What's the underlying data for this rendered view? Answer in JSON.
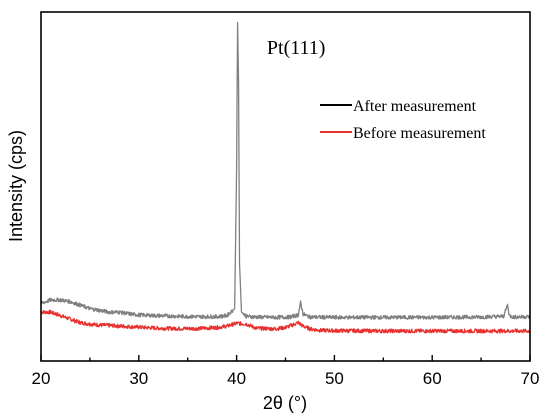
{
  "chart_data": {
    "type": "line",
    "xlabel": "2θ (°)",
    "ylabel": "Intensity (cps)",
    "xlim": [
      20,
      70
    ],
    "ylim": [
      0,
      100
    ],
    "x_ticks": [
      "20",
      "30",
      "40",
      "50",
      "60",
      "70"
    ],
    "y_ticks_labeled": false,
    "grid": false,
    "legend_position": "upper-right",
    "annotations": [
      {
        "text": "Pt(111)",
        "x": 43.1,
        "y": 90
      }
    ],
    "series": [
      {
        "name": "After measurement",
        "color": "#808080",
        "legend_color": "#000000",
        "x": [
          20,
          21,
          22,
          23,
          24,
          25,
          26,
          27,
          28,
          29,
          30,
          32,
          34,
          36,
          38,
          39,
          39.8,
          40.0,
          40.1,
          40.2,
          40.3,
          40.5,
          41,
          42,
          44,
          45.5,
          46.3,
          46.55,
          46.8,
          47.5,
          50,
          55,
          60,
          65,
          67.3,
          67.7,
          67.9,
          68.3,
          70
        ],
        "values": [
          16.5,
          17.5,
          17.5,
          17.0,
          16.0,
          15.0,
          14.5,
          14.0,
          14.0,
          13.5,
          13.2,
          13.0,
          12.8,
          12.7,
          12.7,
          13.0,
          15.0,
          55.0,
          97.0,
          80.0,
          28.0,
          14.0,
          12.8,
          12.6,
          12.5,
          12.6,
          13.2,
          16.8,
          13.4,
          12.6,
          12.5,
          12.5,
          12.5,
          12.6,
          12.8,
          16.0,
          13.0,
          12.6,
          12.7
        ]
      },
      {
        "name": "Before measurement",
        "color": "#e8312f",
        "legend_color": "#e8312f",
        "x": [
          20,
          21,
          22,
          23,
          24,
          25,
          26,
          27,
          28,
          30,
          32,
          34,
          36,
          38,
          39,
          40,
          41,
          42,
          43,
          44,
          45,
          45.8,
          46.3,
          46.8,
          47.5,
          48.5,
          50,
          55,
          60,
          65,
          70
        ],
        "values": [
          14.0,
          14.0,
          13.0,
          12.0,
          11.0,
          10.6,
          10.3,
          10.2,
          10.0,
          9.7,
          9.4,
          9.3,
          9.3,
          9.6,
          10.0,
          10.8,
          10.6,
          9.4,
          9.3,
          9.2,
          9.6,
          10.4,
          11.0,
          10.0,
          9.2,
          8.8,
          8.7,
          8.6,
          8.6,
          8.6,
          8.6
        ]
      }
    ]
  }
}
